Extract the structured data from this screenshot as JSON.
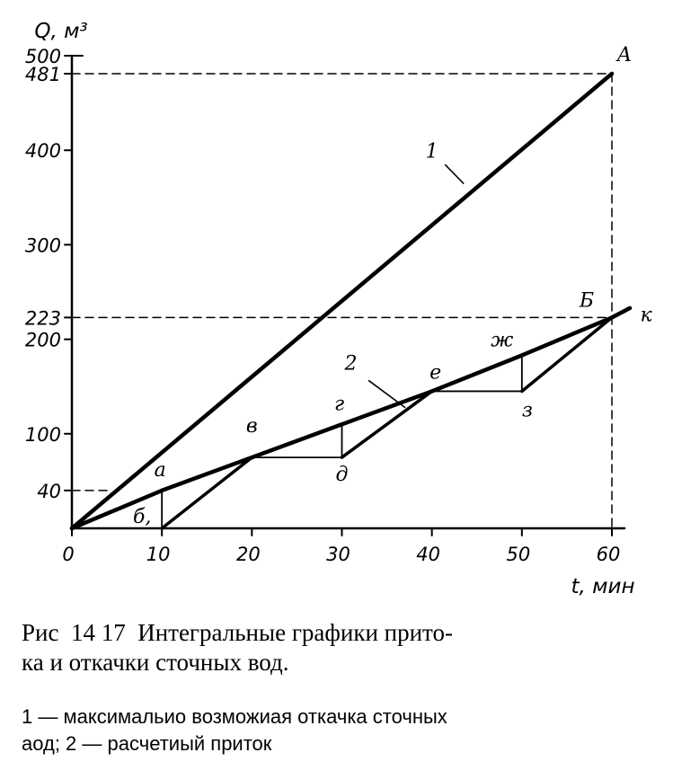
{
  "chart_data": {
    "type": "line",
    "ylabel": "Q, м³",
    "xlabel": "t, мин",
    "xlim": [
      0,
      60
    ],
    "ylim": [
      0,
      500
    ],
    "xticks": [
      "0",
      "10",
      "20",
      "30",
      "40",
      "50",
      "60"
    ],
    "yticks": [
      "40",
      "100",
      "200",
      "223",
      "300",
      "400",
      "481",
      "500"
    ],
    "grid": false,
    "series": [
      {
        "name": "1",
        "points": [
          [
            0,
            0
          ],
          [
            60,
            481
          ]
        ]
      },
      {
        "name": "2",
        "points": [
          [
            0,
            0
          ],
          [
            10,
            40
          ],
          [
            20,
            75
          ],
          [
            30,
            110
          ],
          [
            40,
            145
          ],
          [
            50,
            183
          ],
          [
            60,
            223
          ]
        ]
      }
    ],
    "pumping_segments": [
      [
        [
          0,
          0
        ],
        [
          10,
          40
        ]
      ],
      [
        [
          10,
          0
        ],
        [
          20,
          75
        ]
      ],
      [
        [
          20,
          75
        ],
        [
          30,
          75
        ]
      ],
      [
        [
          30,
          75
        ],
        [
          40,
          145
        ]
      ],
      [
        [
          40,
          145
        ],
        [
          50,
          145
        ]
      ],
      [
        [
          50,
          145
        ],
        [
          60,
          223
        ]
      ]
    ],
    "verticals": [
      [
        [
          10,
          0
        ],
        [
          10,
          40
        ]
      ],
      [
        [
          30,
          75
        ],
        [
          30,
          110
        ]
      ],
      [
        [
          50,
          145
        ],
        [
          50,
          183
        ]
      ]
    ],
    "reference_lines": [
      {
        "y": 481,
        "x_end": 60
      },
      {
        "y": 223,
        "x_end": 60
      },
      {
        "y": 40,
        "x_end": 4
      }
    ],
    "point_labels": [
      {
        "text": "A",
        "x": 60,
        "y": 481
      },
      {
        "text": "Б",
        "x": 58,
        "y": 223
      },
      {
        "text": "к",
        "x": 62,
        "y": 223
      },
      {
        "text": "а",
        "x": 10,
        "y": 40
      },
      {
        "text": "б,",
        "x": 9,
        "y": 0
      },
      {
        "text": "в",
        "x": 20,
        "y": 75
      },
      {
        "text": "г",
        "x": 30,
        "y": 110
      },
      {
        "text": "д",
        "x": 30,
        "y": 75
      },
      {
        "text": "е",
        "x": 40,
        "y": 145
      },
      {
        "text": "ж",
        "x": 48,
        "y": 183
      },
      {
        "text": "з",
        "x": 50,
        "y": 145
      },
      {
        "text": "1",
        "x": 40,
        "y": 392
      },
      {
        "text": "2",
        "x": 31,
        "y": 168
      }
    ]
  },
  "caption": {
    "title": "Рис  14 17  Интегральные графики прито-\nка и откачки сточных вод.",
    "legend": "1 — максимальио возможиая откачка сточных\nаод; 2 — расчетиый приток"
  }
}
